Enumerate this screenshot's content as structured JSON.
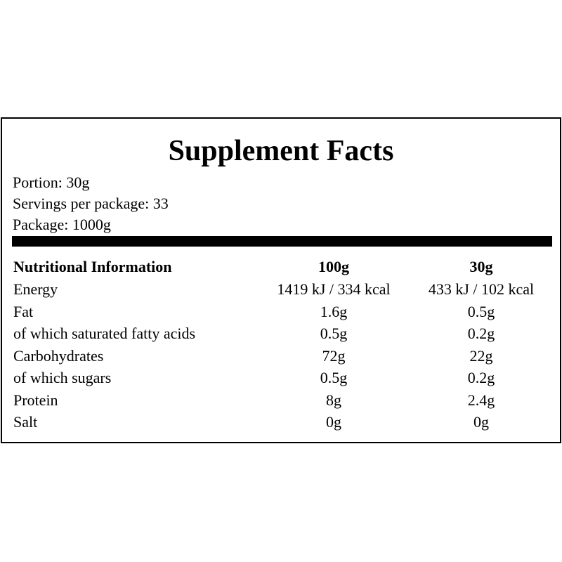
{
  "header": {
    "title": "Supplement Facts"
  },
  "details": [
    "Portion: 30g",
    "Servings per package: 33",
    "Package: 1000g"
  ],
  "table": {
    "columns": [
      "Nutritional Information",
      "100g",
      "30g"
    ],
    "rows": [
      [
        "Energy",
        "1419 kJ / 334 kcal",
        "433 kJ / 102 kcal"
      ],
      [
        "Fat",
        "1.6g",
        "0.5g"
      ],
      [
        "of which saturated fatty acids",
        "0.5g",
        "0.2g"
      ],
      [
        "Carbohydrates",
        "72g",
        "22g"
      ],
      [
        "of which sugars",
        "0.5g",
        "0.2g"
      ],
      [
        "Protein",
        "8g",
        "2.4g"
      ],
      [
        "Salt",
        "0g",
        "0g"
      ]
    ]
  }
}
